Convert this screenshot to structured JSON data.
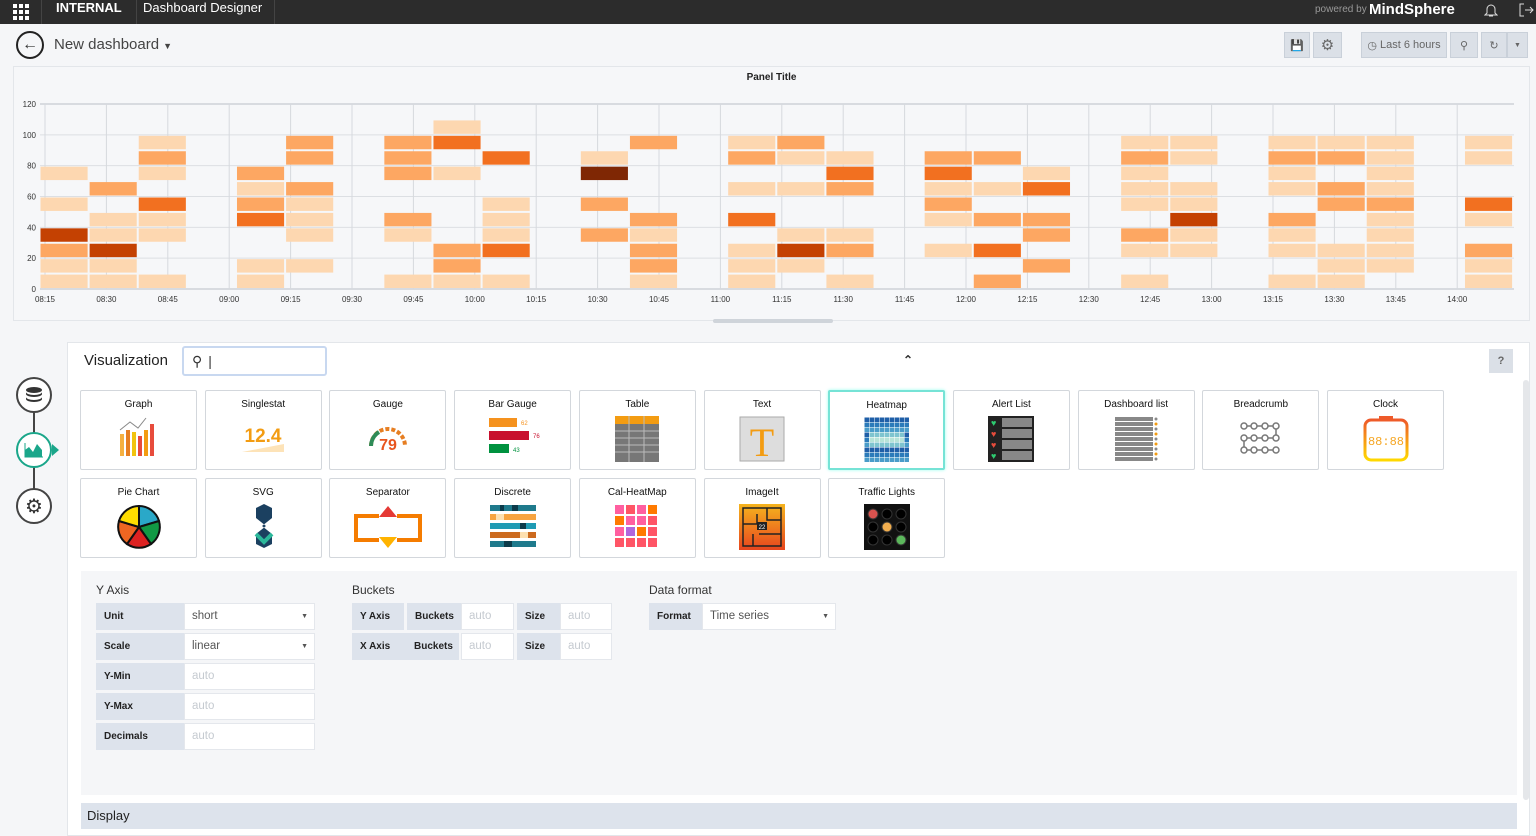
{
  "topbar": {
    "internal": "INTERNAL",
    "app": "Dashboard Designer",
    "powered_by": "powered by",
    "brand": "MindSphere"
  },
  "header": {
    "title": "New dashboard",
    "time_range": "Last 6 hours"
  },
  "colors": {
    "accent": "#1aa68a",
    "l1": "#fdd7b0",
    "l2": "#fda762",
    "l3": "#f27020",
    "l4": "#c44102",
    "l5": "#7f2704"
  },
  "chart_data": {
    "type": "heatmap",
    "title": "Panel Title",
    "ylim": [
      0,
      120
    ],
    "y_ticks": [
      "0",
      "20",
      "40",
      "60",
      "80",
      "100",
      "120"
    ],
    "x_ticks": [
      "08:15",
      "08:30",
      "08:45",
      "09:00",
      "09:15",
      "09:30",
      "09:45",
      "10:00",
      "10:15",
      "10:30",
      "10:45",
      "11:00",
      "11:15",
      "11:30",
      "11:45",
      "12:00",
      "12:15",
      "12:30",
      "12:45",
      "13:00",
      "13:15",
      "13:30",
      "13:45",
      "14:00"
    ],
    "x_bucket_minutes": 12,
    "y_bucket_size": 10,
    "note": "cells: [column index from ~08:14, bucket index (lower bound/10), intensity 1-5]",
    "cells": [
      [
        0,
        7,
        1
      ],
      [
        0,
        5,
        1
      ],
      [
        0,
        3,
        4
      ],
      [
        0,
        2,
        2
      ],
      [
        0,
        1,
        1
      ],
      [
        0,
        0,
        1
      ],
      [
        1,
        6,
        2
      ],
      [
        1,
        4,
        1
      ],
      [
        1,
        3,
        1
      ],
      [
        1,
        2,
        4
      ],
      [
        1,
        1,
        1
      ],
      [
        1,
        0,
        1
      ],
      [
        2,
        9,
        1
      ],
      [
        2,
        8,
        2
      ],
      [
        2,
        7,
        1
      ],
      [
        2,
        5,
        3
      ],
      [
        2,
        4,
        1
      ],
      [
        2,
        3,
        1
      ],
      [
        2,
        0,
        1
      ],
      [
        4,
        7,
        2
      ],
      [
        4,
        6,
        1
      ],
      [
        4,
        5,
        2
      ],
      [
        4,
        4,
        3
      ],
      [
        4,
        1,
        1
      ],
      [
        4,
        0,
        1
      ],
      [
        5,
        9,
        2
      ],
      [
        5,
        8,
        2
      ],
      [
        5,
        6,
        2
      ],
      [
        5,
        5,
        1
      ],
      [
        5,
        4,
        1
      ],
      [
        5,
        3,
        1
      ],
      [
        5,
        1,
        1
      ],
      [
        7,
        9,
        2
      ],
      [
        7,
        8,
        2
      ],
      [
        7,
        7,
        2
      ],
      [
        7,
        4,
        2
      ],
      [
        7,
        3,
        1
      ],
      [
        7,
        0,
        1
      ],
      [
        8,
        10,
        1
      ],
      [
        8,
        9,
        3
      ],
      [
        8,
        7,
        1
      ],
      [
        8,
        2,
        2
      ],
      [
        8,
        1,
        2
      ],
      [
        8,
        0,
        1
      ],
      [
        9,
        8,
        3
      ],
      [
        9,
        5,
        1
      ],
      [
        9,
        4,
        1
      ],
      [
        9,
        3,
        1
      ],
      [
        9,
        2,
        3
      ],
      [
        9,
        0,
        1
      ],
      [
        11,
        8,
        1
      ],
      [
        11,
        7,
        5
      ],
      [
        11,
        5,
        2
      ],
      [
        11,
        3,
        2
      ],
      [
        12,
        9,
        2
      ],
      [
        12,
        4,
        2
      ],
      [
        12,
        3,
        1
      ],
      [
        12,
        2,
        2
      ],
      [
        12,
        1,
        2
      ],
      [
        12,
        0,
        1
      ],
      [
        14,
        9,
        1
      ],
      [
        14,
        8,
        2
      ],
      [
        14,
        6,
        1
      ],
      [
        14,
        4,
        3
      ],
      [
        14,
        2,
        1
      ],
      [
        14,
        1,
        1
      ],
      [
        14,
        0,
        1
      ],
      [
        15,
        9,
        2
      ],
      [
        15,
        8,
        1
      ],
      [
        15,
        6,
        1
      ],
      [
        15,
        3,
        1
      ],
      [
        15,
        2,
        4
      ],
      [
        15,
        1,
        1
      ],
      [
        16,
        8,
        1
      ],
      [
        16,
        7,
        3
      ],
      [
        16,
        6,
        2
      ],
      [
        16,
        3,
        1
      ],
      [
        16,
        2,
        2
      ],
      [
        16,
        0,
        1
      ],
      [
        18,
        8,
        2
      ],
      [
        18,
        7,
        3
      ],
      [
        18,
        6,
        1
      ],
      [
        18,
        5,
        2
      ],
      [
        18,
        4,
        1
      ],
      [
        18,
        2,
        1
      ],
      [
        19,
        8,
        2
      ],
      [
        19,
        6,
        1
      ],
      [
        19,
        4,
        2
      ],
      [
        19,
        2,
        3
      ],
      [
        19,
        0,
        2
      ],
      [
        20,
        7,
        1
      ],
      [
        20,
        6,
        3
      ],
      [
        20,
        4,
        2
      ],
      [
        20,
        3,
        2
      ],
      [
        20,
        1,
        2
      ],
      [
        22,
        9,
        1
      ],
      [
        22,
        8,
        2
      ],
      [
        22,
        7,
        1
      ],
      [
        22,
        6,
        1
      ],
      [
        22,
        5,
        1
      ],
      [
        22,
        3,
        2
      ],
      [
        22,
        2,
        1
      ],
      [
        22,
        0,
        1
      ],
      [
        23,
        9,
        1
      ],
      [
        23,
        8,
        1
      ],
      [
        23,
        6,
        1
      ],
      [
        23,
        5,
        1
      ],
      [
        23,
        4,
        4
      ],
      [
        23,
        3,
        1
      ],
      [
        23,
        2,
        1
      ],
      [
        25,
        9,
        1
      ],
      [
        25,
        8,
        2
      ],
      [
        25,
        7,
        1
      ],
      [
        25,
        6,
        1
      ],
      [
        25,
        4,
        2
      ],
      [
        25,
        3,
        1
      ],
      [
        25,
        2,
        1
      ],
      [
        25,
        0,
        1
      ],
      [
        26,
        9,
        1
      ],
      [
        26,
        8,
        2
      ],
      [
        26,
        6,
        2
      ],
      [
        26,
        5,
        2
      ],
      [
        26,
        2,
        1
      ],
      [
        26,
        1,
        1
      ],
      [
        26,
        0,
        1
      ],
      [
        27,
        9,
        1
      ],
      [
        27,
        8,
        1
      ],
      [
        27,
        7,
        1
      ],
      [
        27,
        6,
        1
      ],
      [
        27,
        5,
        2
      ],
      [
        27,
        4,
        1
      ],
      [
        27,
        3,
        1
      ],
      [
        27,
        2,
        1
      ],
      [
        27,
        1,
        1
      ],
      [
        29,
        9,
        1
      ],
      [
        29,
        8,
        1
      ],
      [
        29,
        5,
        3
      ],
      [
        29,
        4,
        1
      ],
      [
        29,
        2,
        2
      ],
      [
        29,
        1,
        1
      ],
      [
        29,
        0,
        1
      ]
    ]
  },
  "editor": {
    "title": "Visualization",
    "search_value": "|",
    "help": "?",
    "tiles": [
      "Graph",
      "Singlestat",
      "Gauge",
      "Bar Gauge",
      "Table",
      "Text",
      "Heatmap",
      "Alert List",
      "Dashboard list",
      "Breadcrumb",
      "Clock",
      "Pie Chart",
      "SVG",
      "Separator",
      "Discrete",
      "Cal-HeatMap",
      "ImageIt",
      "Traffic Lights"
    ],
    "selected": "Heatmap",
    "icon_text": {
      "singlestat": "12.4",
      "gauge": "79",
      "bar1": "62",
      "bar2": "76",
      "bar3": "43",
      "clock": "88:88",
      "imageit": "22"
    },
    "yaxis": {
      "title": "Y Axis",
      "unit_label": "Unit",
      "unit": "short",
      "scale_label": "Scale",
      "scale": "linear",
      "ymin_label": "Y-Min",
      "ymin": "auto",
      "ymax_label": "Y-Max",
      "ymax": "auto",
      "decimals_label": "Decimals",
      "decimals": "auto"
    },
    "buckets": {
      "title": "Buckets",
      "y_axis": "Y Axis",
      "x_axis": "X Axis",
      "buckets_label": "Buckets",
      "size_label": "Size",
      "y_buckets": "auto",
      "y_size": "auto",
      "x_buckets": "auto",
      "x_size": "auto"
    },
    "data_format": {
      "title": "Data format",
      "format_label": "Format",
      "format": "Time series"
    },
    "display": "Display"
  }
}
